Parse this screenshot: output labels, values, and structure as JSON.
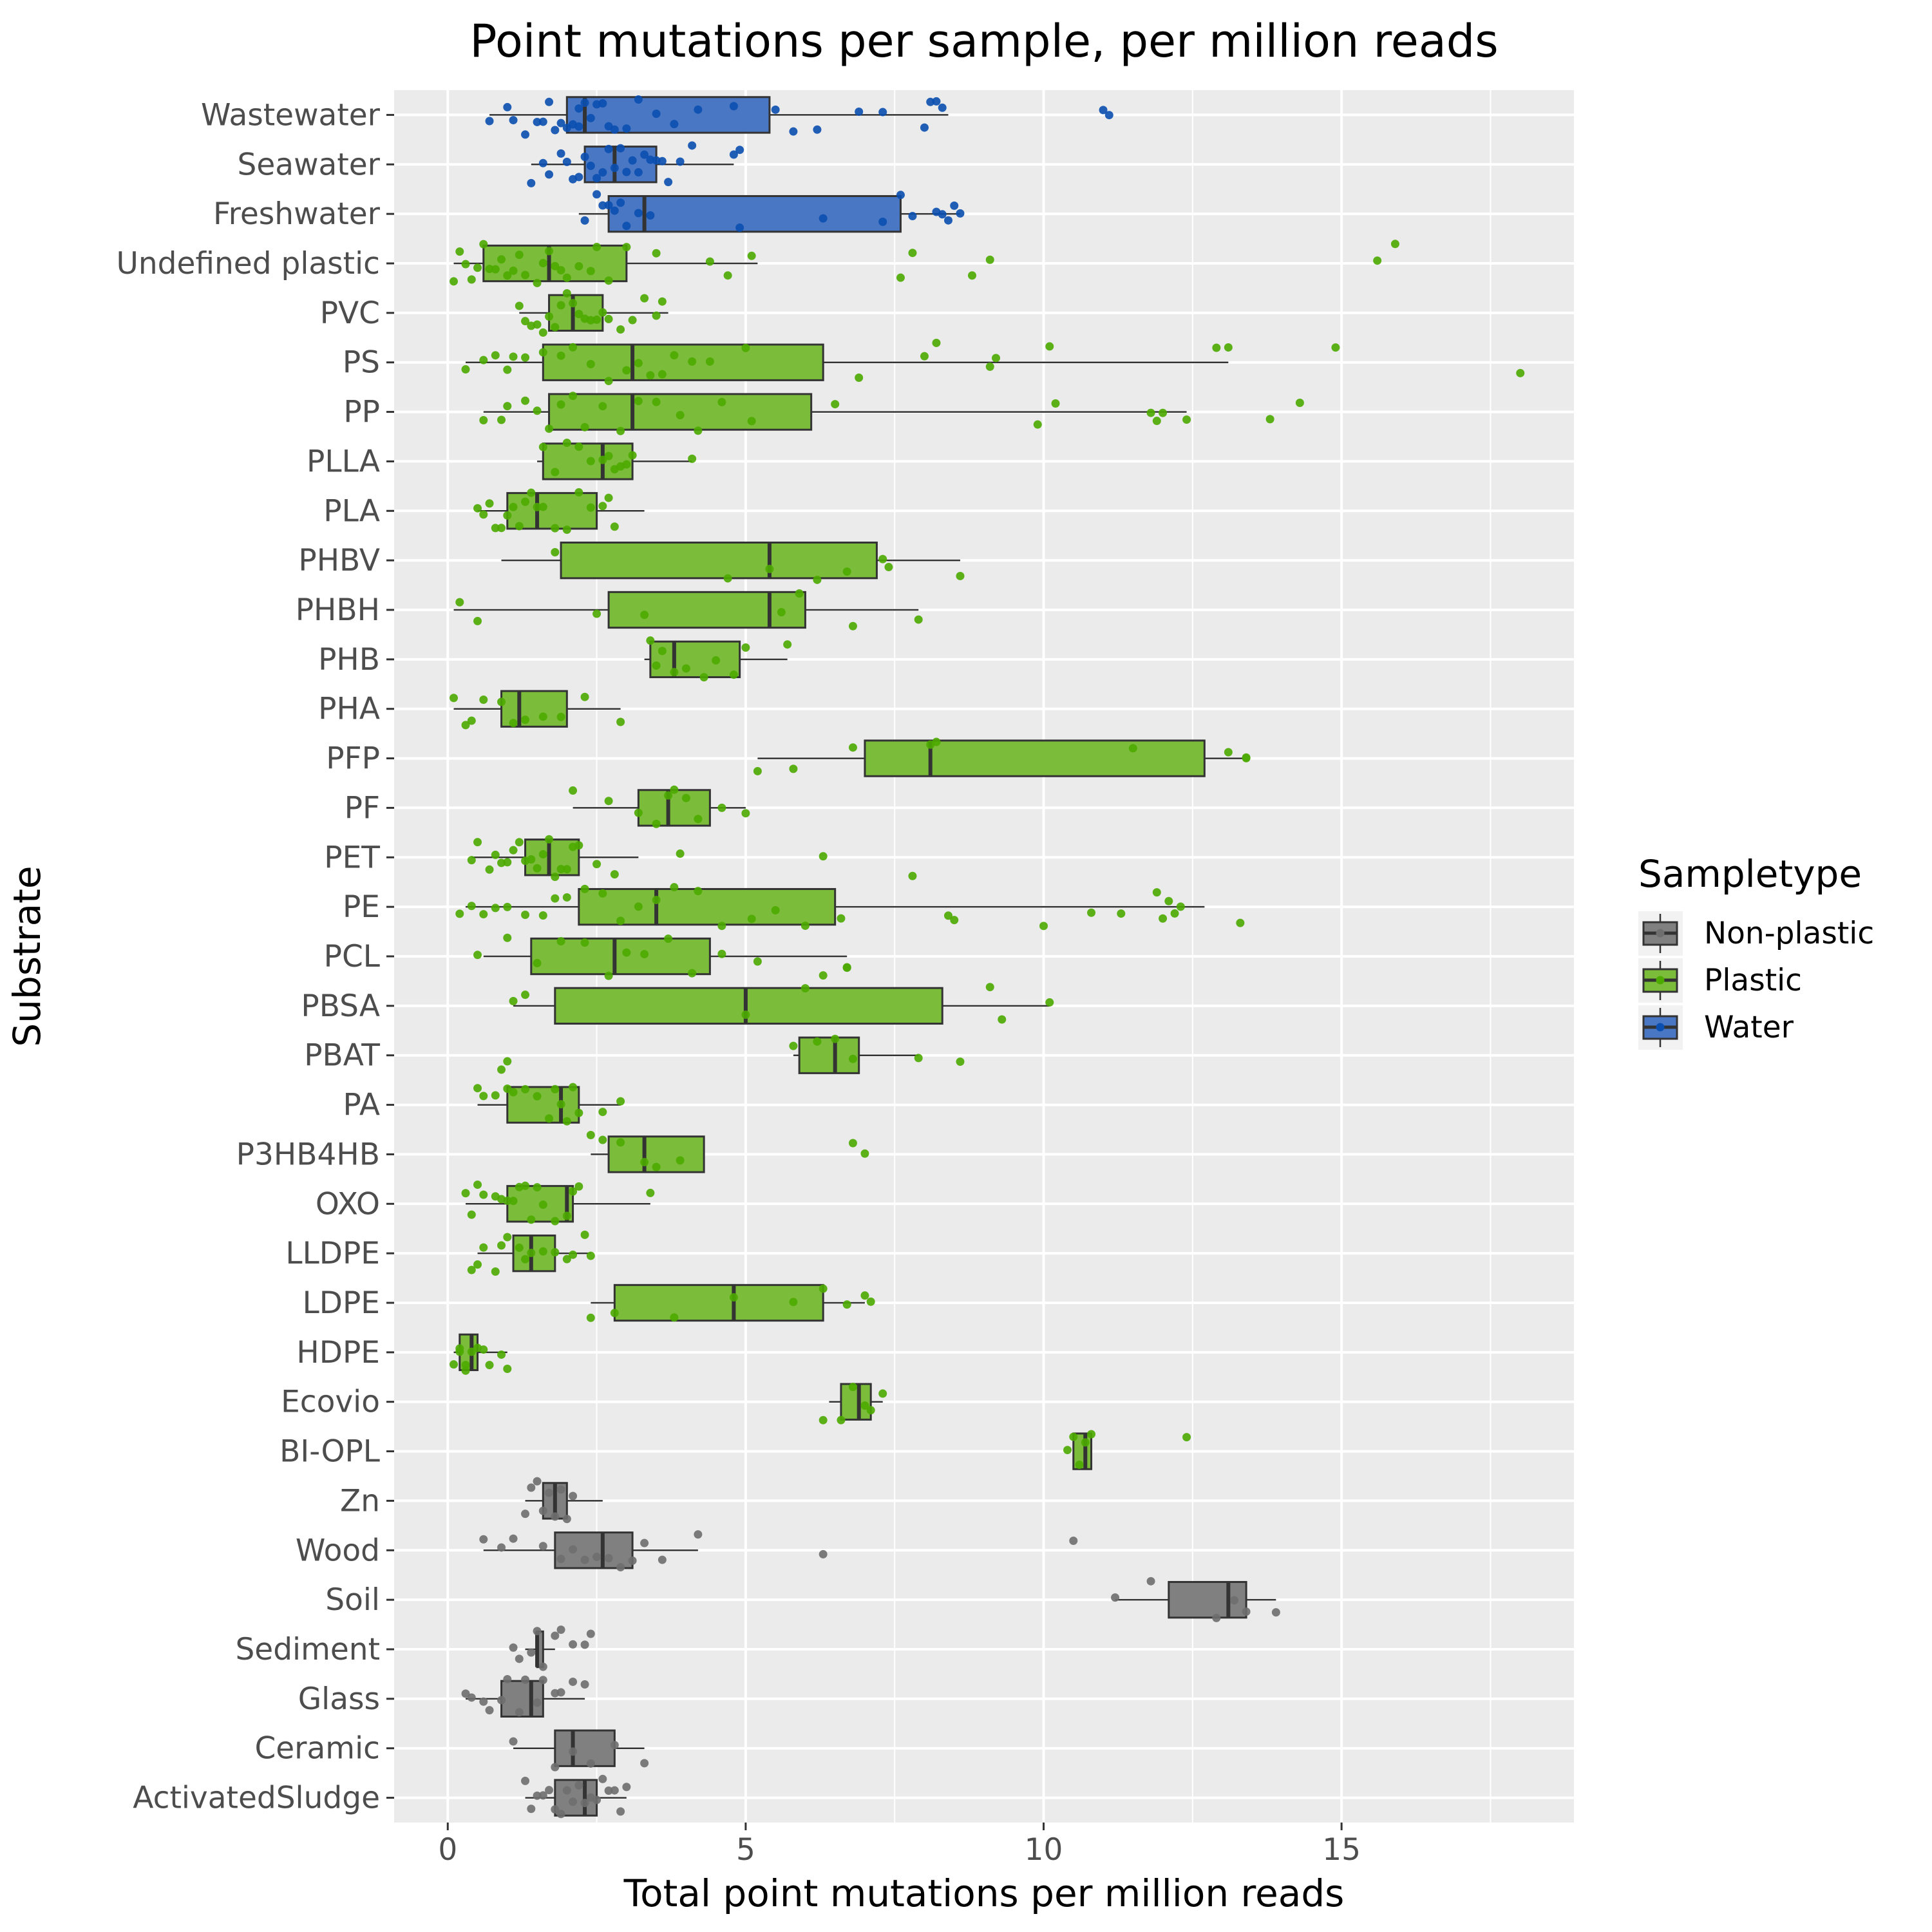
{
  "chart_data": {
    "type": "boxplot",
    "title": "Point mutations per sample, per million reads",
    "xlabel": "Total point mutations per million reads",
    "ylabel": "Substrate",
    "xlim": [
      -0.9,
      18.9
    ],
    "x_ticks": [
      0,
      5,
      10,
      15
    ],
    "grid": true,
    "legend": {
      "title": "Sampletype",
      "placement": "right",
      "entries": [
        {
          "label": "Non-plastic",
          "color": "#808080",
          "point": "#6e6e6e"
        },
        {
          "label": "Plastic",
          "color": "#7bbd3a",
          "point": "#4daa00"
        },
        {
          "label": "Water",
          "color": "#4a77c4",
          "point": "#0a4fb0"
        }
      ]
    },
    "categories": [
      {
        "name": "Wastewater",
        "type": "Water",
        "whisker_low": 0.7,
        "q1": 2.0,
        "median": 2.3,
        "q3": 5.4,
        "whisker_high": 8.4,
        "points": [
          0.7,
          1.0,
          1.1,
          1.3,
          1.5,
          1.6,
          1.7,
          1.8,
          1.9,
          2.0,
          2.1,
          2.2,
          2.2,
          2.3,
          2.4,
          2.5,
          2.6,
          2.7,
          2.8,
          3.0,
          3.2,
          3.5,
          3.8,
          4.2,
          4.8,
          5.5,
          5.8,
          6.2,
          6.9,
          7.3,
          8.0,
          8.1,
          8.2,
          8.3,
          11.0,
          11.1
        ]
      },
      {
        "name": "Seawater",
        "type": "Water",
        "whisker_low": 1.4,
        "q1": 2.3,
        "median": 2.8,
        "q3": 3.5,
        "whisker_high": 4.8,
        "points": [
          1.4,
          1.6,
          1.7,
          1.9,
          2.0,
          2.1,
          2.2,
          2.3,
          2.4,
          2.5,
          2.6,
          2.7,
          2.8,
          2.9,
          3.0,
          3.1,
          3.2,
          3.3,
          3.4,
          3.5,
          3.6,
          3.7,
          3.9,
          4.1,
          4.8,
          4.9
        ]
      },
      {
        "name": "Freshwater",
        "type": "Water",
        "whisker_low": 2.2,
        "q1": 2.7,
        "median": 3.3,
        "q3": 7.6,
        "whisker_high": 8.6,
        "points": [
          2.3,
          2.5,
          2.6,
          2.7,
          2.8,
          2.9,
          3.0,
          3.2,
          3.4,
          4.9,
          6.3,
          7.3,
          7.6,
          7.8,
          8.2,
          8.3,
          8.4,
          8.5,
          8.6
        ]
      },
      {
        "name": "Undefined plastic",
        "type": "Plastic",
        "whisker_low": 0.1,
        "q1": 0.6,
        "median": 1.7,
        "q3": 3.0,
        "whisker_high": 5.2,
        "points": [
          0.1,
          0.2,
          0.3,
          0.4,
          0.5,
          0.6,
          0.7,
          0.8,
          0.9,
          1.0,
          1.1,
          1.2,
          1.3,
          1.5,
          1.6,
          1.7,
          1.8,
          1.9,
          2.0,
          2.2,
          2.4,
          2.5,
          2.7,
          3.0,
          3.5,
          4.4,
          4.7,
          5.1,
          7.6,
          7.8,
          8.8,
          9.1,
          15.6,
          15.9
        ]
      },
      {
        "name": "PVC",
        "type": "Plastic",
        "whisker_low": 1.2,
        "q1": 1.7,
        "median": 2.1,
        "q3": 2.6,
        "whisker_high": 3.7,
        "points": [
          1.2,
          1.3,
          1.4,
          1.5,
          1.6,
          1.7,
          1.8,
          1.9,
          2.0,
          2.1,
          2.2,
          2.3,
          2.4,
          2.5,
          2.6,
          2.7,
          2.9,
          3.1,
          3.3,
          3.5,
          3.6
        ]
      },
      {
        "name": "PS",
        "type": "Plastic",
        "whisker_low": 0.3,
        "q1": 1.6,
        "median": 3.1,
        "q3": 6.3,
        "whisker_high": 13.1,
        "points": [
          0.3,
          0.6,
          0.8,
          1.0,
          1.1,
          1.3,
          1.6,
          1.9,
          2.1,
          2.4,
          2.7,
          3.0,
          3.2,
          3.4,
          3.6,
          3.8,
          4.1,
          4.4,
          5.0,
          6.9,
          8.0,
          8.2,
          9.1,
          9.2,
          10.1,
          12.9,
          13.1,
          14.9,
          18.0
        ]
      },
      {
        "name": "PP",
        "type": "Plastic",
        "whisker_low": 0.6,
        "q1": 1.7,
        "median": 3.1,
        "q3": 6.1,
        "whisker_high": 12.4,
        "points": [
          0.6,
          0.9,
          1.0,
          1.3,
          1.5,
          1.7,
          1.9,
          2.1,
          2.3,
          2.6,
          2.9,
          3.2,
          3.5,
          3.9,
          4.2,
          4.6,
          5.1,
          6.5,
          9.9,
          10.2,
          11.8,
          11.9,
          12.0,
          12.4,
          13.8,
          14.3
        ]
      },
      {
        "name": "PLLA",
        "type": "Plastic",
        "whisker_low": 1.5,
        "q1": 1.6,
        "median": 2.6,
        "q3": 3.1,
        "whisker_high": 4.1,
        "points": [
          1.6,
          1.8,
          2.0,
          2.2,
          2.4,
          2.6,
          2.7,
          2.8,
          2.9,
          3.0,
          3.1,
          4.1
        ]
      },
      {
        "name": "PLA",
        "type": "Plastic",
        "whisker_low": 0.5,
        "q1": 1.0,
        "median": 1.5,
        "q3": 2.5,
        "whisker_high": 3.3,
        "points": [
          0.5,
          0.6,
          0.7,
          0.8,
          0.9,
          1.0,
          1.1,
          1.2,
          1.3,
          1.4,
          1.5,
          1.6,
          1.8,
          2.0,
          2.2,
          2.4,
          2.6,
          2.7,
          2.8
        ]
      },
      {
        "name": "PHBV",
        "type": "Plastic",
        "whisker_low": 0.9,
        "q1": 1.9,
        "median": 5.4,
        "q3": 7.2,
        "whisker_high": 8.6,
        "points": [
          1.8,
          4.7,
          5.4,
          6.2,
          6.7,
          7.3,
          7.4,
          8.6
        ]
      },
      {
        "name": "PHBH",
        "type": "Plastic",
        "whisker_low": 0.1,
        "q1": 2.7,
        "median": 5.4,
        "q3": 6.0,
        "whisker_high": 7.9,
        "points": [
          0.2,
          0.5,
          2.5,
          3.3,
          5.6,
          5.9,
          6.8,
          7.9
        ]
      },
      {
        "name": "PHB",
        "type": "Plastic",
        "whisker_low": 3.3,
        "q1": 3.4,
        "median": 3.8,
        "q3": 4.9,
        "whisker_high": 5.7,
        "points": [
          3.4,
          3.5,
          3.6,
          3.8,
          4.0,
          4.3,
          4.5,
          4.8,
          5.0,
          5.7
        ]
      },
      {
        "name": "PHA",
        "type": "Plastic",
        "whisker_low": 0.1,
        "q1": 0.9,
        "median": 1.2,
        "q3": 2.0,
        "whisker_high": 2.9,
        "points": [
          0.1,
          0.3,
          0.4,
          0.6,
          0.9,
          1.1,
          1.3,
          1.6,
          1.9,
          2.3,
          2.9
        ]
      },
      {
        "name": "PFP",
        "type": "Plastic",
        "whisker_low": 5.2,
        "q1": 7.0,
        "median": 8.1,
        "q3": 12.7,
        "whisker_high": 13.4,
        "points": [
          5.2,
          5.8,
          6.8,
          8.1,
          8.2,
          11.5,
          13.1,
          13.4,
          13.4
        ]
      },
      {
        "name": "PF",
        "type": "Plastic",
        "whisker_low": 2.1,
        "q1": 3.2,
        "median": 3.7,
        "q3": 4.4,
        "whisker_high": 5.0,
        "points": [
          2.1,
          2.7,
          3.2,
          3.5,
          3.7,
          3.8,
          4.0,
          4.2,
          4.6,
          5.0
        ]
      },
      {
        "name": "PET",
        "type": "Plastic",
        "whisker_low": 0.4,
        "q1": 1.3,
        "median": 1.7,
        "q3": 2.2,
        "whisker_high": 3.2,
        "points": [
          0.4,
          0.5,
          0.7,
          0.8,
          0.9,
          1.0,
          1.1,
          1.2,
          1.3,
          1.4,
          1.5,
          1.6,
          1.7,
          1.8,
          1.9,
          2.0,
          2.1,
          2.2,
          2.5,
          2.8,
          3.9,
          6.3,
          7.8
        ]
      },
      {
        "name": "PE",
        "type": "Plastic",
        "whisker_low": 0.3,
        "q1": 2.2,
        "median": 3.5,
        "q3": 6.5,
        "whisker_high": 12.7,
        "points": [
          0.2,
          0.4,
          0.6,
          0.8,
          1.0,
          1.3,
          1.6,
          1.8,
          2.0,
          2.3,
          2.6,
          2.9,
          3.2,
          3.5,
          3.8,
          4.2,
          4.6,
          5.1,
          5.5,
          6.0,
          6.6,
          8.4,
          8.5,
          10.0,
          10.8,
          11.3,
          11.9,
          12.0,
          12.1,
          12.2,
          12.3,
          13.3
        ]
      },
      {
        "name": "PCL",
        "type": "Plastic",
        "whisker_low": 0.6,
        "q1": 1.4,
        "median": 2.8,
        "q3": 4.4,
        "whisker_high": 6.7,
        "points": [
          0.5,
          1.0,
          1.5,
          1.9,
          2.3,
          2.7,
          3.0,
          3.3,
          3.7,
          4.1,
          4.6,
          5.2,
          6.3,
          6.7,
          6.7
        ]
      },
      {
        "name": "PBSA",
        "type": "Plastic",
        "whisker_low": 1.1,
        "q1": 1.8,
        "median": 5.0,
        "q3": 8.3,
        "whisker_high": 10.1,
        "points": [
          1.1,
          1.3,
          5.0,
          6.0,
          9.1,
          9.3,
          10.1
        ]
      },
      {
        "name": "PBAT",
        "type": "Plastic",
        "whisker_low": 5.8,
        "q1": 5.9,
        "median": 6.5,
        "q3": 6.9,
        "whisker_high": 7.9,
        "points": [
          0.9,
          1.0,
          5.8,
          6.2,
          6.5,
          6.8,
          7.9,
          8.6
        ]
      },
      {
        "name": "PA",
        "type": "Plastic",
        "whisker_low": 0.5,
        "q1": 1.0,
        "median": 1.9,
        "q3": 2.2,
        "whisker_high": 2.9,
        "points": [
          0.5,
          0.6,
          0.8,
          1.0,
          1.1,
          1.3,
          1.5,
          1.7,
          1.8,
          1.9,
          2.0,
          2.1,
          2.2,
          2.6,
          2.9
        ]
      },
      {
        "name": "P3HB4HB",
        "type": "Plastic",
        "whisker_low": 2.4,
        "q1": 2.7,
        "median": 3.3,
        "q3": 4.3,
        "whisker_high": 4.3,
        "points": [
          2.4,
          2.6,
          2.9,
          3.3,
          3.5,
          3.9,
          6.8,
          7.0
        ]
      },
      {
        "name": "OXO",
        "type": "Plastic",
        "whisker_low": 0.3,
        "q1": 1.0,
        "median": 2.0,
        "q3": 2.1,
        "whisker_high": 3.4,
        "points": [
          0.3,
          0.4,
          0.5,
          0.6,
          0.8,
          0.9,
          1.0,
          1.1,
          1.2,
          1.3,
          1.4,
          1.5,
          1.6,
          1.8,
          2.0,
          2.1,
          2.2,
          3.4
        ]
      },
      {
        "name": "LLDPE",
        "type": "Plastic",
        "whisker_low": 0.5,
        "q1": 1.1,
        "median": 1.4,
        "q3": 1.8,
        "whisker_high": 2.4,
        "points": [
          0.4,
          0.5,
          0.6,
          0.8,
          0.9,
          1.0,
          1.2,
          1.3,
          1.4,
          1.6,
          1.8,
          2.0,
          2.1,
          2.3,
          2.4
        ]
      },
      {
        "name": "LDPE",
        "type": "Plastic",
        "whisker_low": 2.4,
        "q1": 2.8,
        "median": 4.8,
        "q3": 6.3,
        "whisker_high": 7.0,
        "points": [
          2.4,
          2.8,
          3.8,
          4.8,
          5.8,
          6.3,
          6.7,
          7.0,
          7.1
        ]
      },
      {
        "name": "HDPE",
        "type": "Plastic",
        "whisker_low": 0.1,
        "q1": 0.2,
        "median": 0.4,
        "q3": 0.5,
        "whisker_high": 1.0,
        "points": [
          0.1,
          0.2,
          0.2,
          0.3,
          0.3,
          0.4,
          0.5,
          0.6,
          0.7,
          0.9,
          1.0
        ]
      },
      {
        "name": "Ecovio",
        "type": "Plastic",
        "whisker_low": 6.4,
        "q1": 6.6,
        "median": 6.9,
        "q3": 7.1,
        "whisker_high": 7.3,
        "points": [
          6.3,
          6.6,
          6.8,
          7.0,
          7.1,
          7.3
        ]
      },
      {
        "name": "BI-OPL",
        "type": "Plastic",
        "whisker_low": 10.5,
        "q1": 10.5,
        "median": 10.7,
        "q3": 10.8,
        "whisker_high": 10.8,
        "points": [
          10.4,
          10.5,
          10.6,
          10.7,
          10.8,
          12.4
        ]
      },
      {
        "name": "Zn",
        "type": "Non-plastic",
        "whisker_low": 1.3,
        "q1": 1.6,
        "median": 1.8,
        "q3": 2.0,
        "whisker_high": 2.6,
        "points": [
          1.3,
          1.4,
          1.5,
          1.6,
          1.7,
          1.8,
          1.9,
          2.0,
          2.1
        ]
      },
      {
        "name": "Wood",
        "type": "Non-plastic",
        "whisker_low": 0.6,
        "q1": 1.8,
        "median": 2.6,
        "q3": 3.1,
        "whisker_high": 4.2,
        "points": [
          0.6,
          0.9,
          1.1,
          1.6,
          1.9,
          2.1,
          2.3,
          2.5,
          2.7,
          2.9,
          3.1,
          3.3,
          3.6,
          4.2,
          6.3,
          10.5
        ]
      },
      {
        "name": "Soil",
        "type": "Non-plastic",
        "whisker_low": 11.2,
        "q1": 12.1,
        "median": 13.1,
        "q3": 13.4,
        "whisker_high": 13.9,
        "points": [
          11.2,
          11.8,
          12.9,
          13.2,
          13.4,
          13.9
        ]
      },
      {
        "name": "Sediment",
        "type": "Non-plastic",
        "whisker_low": 1.3,
        "q1": 1.5,
        "median": 1.5,
        "q3": 1.6,
        "whisker_high": 1.8,
        "points": [
          1.1,
          1.2,
          1.4,
          1.5,
          1.6,
          1.8,
          1.9,
          2.1,
          2.3,
          2.4
        ]
      },
      {
        "name": "Glass",
        "type": "Non-plastic",
        "whisker_low": 0.3,
        "q1": 0.9,
        "median": 1.4,
        "q3": 1.6,
        "whisker_high": 2.3,
        "points": [
          0.3,
          0.4,
          0.6,
          0.7,
          0.9,
          1.0,
          1.2,
          1.3,
          1.5,
          1.6,
          1.8,
          1.9,
          2.1,
          2.3
        ]
      },
      {
        "name": "Ceramic",
        "type": "Non-plastic",
        "whisker_low": 1.1,
        "q1": 1.8,
        "median": 2.1,
        "q3": 2.8,
        "whisker_high": 3.3,
        "points": [
          1.1,
          1.8,
          2.1,
          2.4,
          2.8,
          3.3
        ]
      },
      {
        "name": "ActivatedSludge",
        "type": "Non-plastic",
        "whisker_low": 1.3,
        "q1": 1.8,
        "median": 2.3,
        "q3": 2.5,
        "whisker_high": 3.0,
        "points": [
          1.3,
          1.4,
          1.5,
          1.6,
          1.7,
          1.8,
          1.9,
          2.0,
          2.1,
          2.2,
          2.3,
          2.4,
          2.5,
          2.6,
          2.7,
          2.8,
          2.9,
          3.0
        ]
      }
    ]
  }
}
